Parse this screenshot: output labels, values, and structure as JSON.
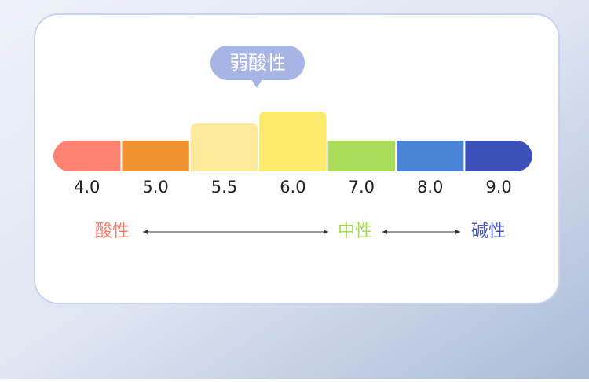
{
  "badge": "弱酸性",
  "scale": {
    "segments": [
      {
        "label": "4.0",
        "color": "#ff8170"
      },
      {
        "label": "5.0",
        "color": "#f19232"
      },
      {
        "label": "5.5",
        "color": "#fde99b"
      },
      {
        "label": "6.0",
        "color": "#fbea6b"
      },
      {
        "label": "7.0",
        "color": "#a9dc58"
      },
      {
        "label": "8.0",
        "color": "#4a85d5"
      },
      {
        "label": "9.0",
        "color": "#3b50b9"
      }
    ]
  },
  "legend": {
    "acid": "酸性",
    "neutral": "中性",
    "base": "碱性"
  }
}
